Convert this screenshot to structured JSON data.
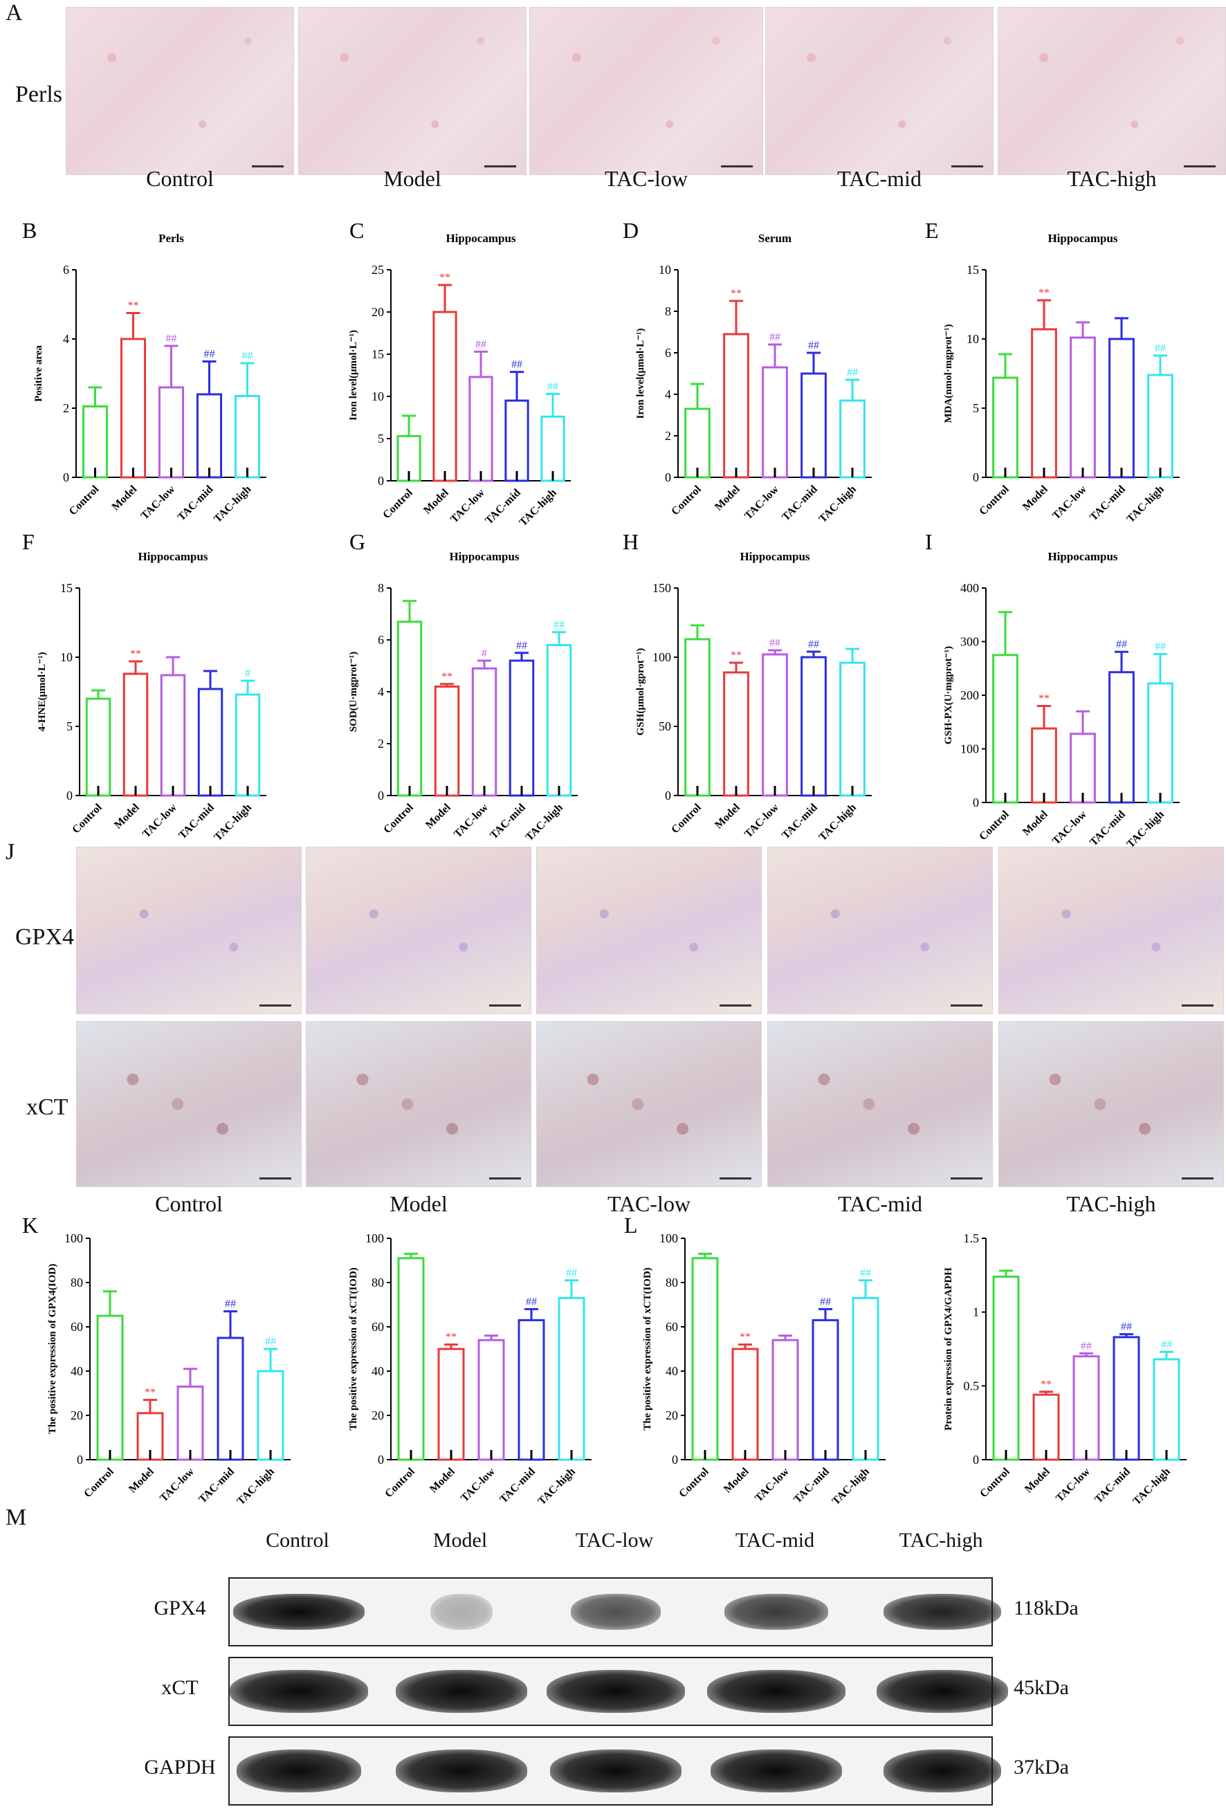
{
  "panels": {
    "A": {
      "letter": "A",
      "row_label": "Perls",
      "groups": [
        "Control",
        "Model",
        "TAC-low",
        "TAC-mid",
        "TAC-high"
      ]
    },
    "J": {
      "letter": "J",
      "row_labels": [
        "GPX4",
        "xCT"
      ],
      "groups": [
        "Control",
        "Model",
        "TAC-low",
        "TAC-mid",
        "TAC-high"
      ]
    },
    "M": {
      "letter": "M",
      "groups": [
        "Control",
        "Model",
        "TAC-low",
        "TAC-mid",
        "TAC-high"
      ],
      "rows": [
        {
          "name": "GPX4",
          "size": "118kDa"
        },
        {
          "name": "xCT",
          "size": "45kDa"
        },
        {
          "name": "GAPDH",
          "size": "37kDa"
        }
      ]
    }
  },
  "colors": {
    "Control": "#3cdc3c",
    "Model": "#e83a3a",
    "TAC-low": "#b75ce0",
    "TAC-mid": "#2a2ee0",
    "TAC-high": "#33e5ee"
  },
  "chart_data": [
    {
      "id": "B",
      "letter": "B",
      "type": "bar",
      "title": "Perls",
      "ylabel": "Positive area",
      "ylim": [
        0,
        6
      ],
      "yticks": [
        0,
        2,
        4,
        6
      ],
      "categories": [
        "Control",
        "Model",
        "TAC-low",
        "TAC-mid",
        "TAC-high"
      ],
      "values": [
        2.05,
        4.0,
        2.6,
        2.4,
        2.35
      ],
      "errors": [
        0.55,
        0.75,
        1.2,
        0.95,
        0.95
      ],
      "annotations": [
        "",
        "**",
        "##",
        "##",
        "##"
      ]
    },
    {
      "id": "C",
      "letter": "C",
      "type": "bar",
      "title": "Hippocampus",
      "ylabel": "Iron level(μmol·L⁻¹)",
      "ylim": [
        0,
        25
      ],
      "yticks": [
        0,
        5,
        10,
        15,
        20,
        25
      ],
      "categories": [
        "Control",
        "Model",
        "TAC-low",
        "TAC-mid",
        "TAC-high"
      ],
      "values": [
        5.3,
        20.0,
        12.3,
        9.5,
        7.6
      ],
      "errors": [
        2.4,
        3.2,
        3.0,
        3.4,
        2.7
      ],
      "annotations": [
        "",
        "**",
        "##",
        "##",
        "##"
      ]
    },
    {
      "id": "D",
      "letter": "D",
      "type": "bar",
      "title": "Serum",
      "ylabel": "Iron level(μmol·L⁻¹)",
      "ylim": [
        0,
        10
      ],
      "yticks": [
        0,
        2,
        4,
        6,
        8,
        10
      ],
      "categories": [
        "Control",
        "Model",
        "TAC-low",
        "TAC-mid",
        "TAC-high"
      ],
      "values": [
        3.3,
        6.9,
        5.3,
        5.0,
        3.7
      ],
      "errors": [
        1.2,
        1.6,
        1.1,
        1.0,
        1.0
      ],
      "annotations": [
        "",
        "**",
        "##",
        "##",
        "##"
      ]
    },
    {
      "id": "E",
      "letter": "E",
      "type": "bar",
      "title": "Hippocampus",
      "ylabel": "MDA(nmol·mgprot⁻¹)",
      "ylim": [
        0,
        15
      ],
      "yticks": [
        0,
        5,
        10,
        15
      ],
      "categories": [
        "Control",
        "Model",
        "TAC-low",
        "TAC-mid",
        "TAC-high"
      ],
      "values": [
        7.2,
        10.7,
        10.1,
        10.0,
        7.4
      ],
      "errors": [
        1.7,
        2.1,
        1.1,
        1.5,
        1.4
      ],
      "annotations": [
        "",
        "**",
        "",
        "",
        "##"
      ]
    },
    {
      "id": "F",
      "letter": "F",
      "type": "bar",
      "title": "Hippocampus",
      "ylabel": "4-HNE(μmol·L⁻¹)",
      "ylim": [
        0,
        15
      ],
      "yticks": [
        0,
        5,
        10,
        15
      ],
      "categories": [
        "Control",
        "Model",
        "TAC-low",
        "TAC-mid",
        "TAC-high"
      ],
      "values": [
        7.0,
        8.8,
        8.7,
        7.7,
        7.3
      ],
      "errors": [
        0.6,
        0.9,
        1.3,
        1.3,
        1.0
      ],
      "annotations": [
        "",
        "**",
        "",
        "",
        "#"
      ]
    },
    {
      "id": "G",
      "letter": "G",
      "type": "bar",
      "title": "Hippocampus",
      "ylabel": "SOD(U·mgprot⁻¹)",
      "ylim": [
        0,
        8
      ],
      "yticks": [
        0,
        2,
        4,
        6,
        8
      ],
      "categories": [
        "Control",
        "Model",
        "TAC-low",
        "TAC-mid",
        "TAC-high"
      ],
      "values": [
        6.7,
        4.2,
        4.9,
        5.2,
        5.8
      ],
      "errors": [
        0.8,
        0.1,
        0.3,
        0.3,
        0.5
      ],
      "annotations": [
        "",
        "**",
        "#",
        "##",
        "##"
      ]
    },
    {
      "id": "H",
      "letter": "H",
      "type": "bar",
      "title": "Hippocampus",
      "ylabel": "GSH(μmol·gprot⁻¹)",
      "ylim": [
        0,
        150
      ],
      "yticks": [
        0,
        50,
        100,
        150
      ],
      "categories": [
        "Control",
        "Model",
        "TAC-low",
        "TAC-mid",
        "TAC-high"
      ],
      "values": [
        113,
        89,
        102,
        100,
        96
      ],
      "errors": [
        10,
        7,
        3,
        4,
        10
      ],
      "annotations": [
        "",
        "**",
        "##",
        "##",
        ""
      ]
    },
    {
      "id": "I",
      "letter": "I",
      "type": "bar",
      "title": "Hippocampus",
      "ylabel": "GSH-PX(U·mgprot⁻¹)",
      "ylim": [
        0,
        400
      ],
      "yticks": [
        0,
        100,
        200,
        300,
        400
      ],
      "categories": [
        "Control",
        "Model",
        "TAC-low",
        "TAC-mid",
        "TAC-high"
      ],
      "values": [
        275,
        138,
        128,
        243,
        222
      ],
      "errors": [
        80,
        42,
        42,
        38,
        55
      ],
      "annotations": [
        "",
        "**",
        "",
        "##",
        "##"
      ]
    },
    {
      "id": "K",
      "letter": "K",
      "type": "bar",
      "title": "",
      "ylabel": "The positive expression of GPX4(IOD)",
      "ylim": [
        0,
        100
      ],
      "yticks": [
        0,
        20,
        40,
        60,
        80,
        100
      ],
      "categories": [
        "Control",
        "Model",
        "TAC-low",
        "TAC-mid",
        "TAC-high"
      ],
      "values": [
        65,
        21,
        33,
        55,
        40
      ],
      "errors": [
        11,
        6,
        8,
        12,
        10
      ],
      "annotations": [
        "",
        "**",
        "",
        "##",
        "##"
      ]
    },
    {
      "id": "K2",
      "letter": "",
      "type": "bar",
      "title": "",
      "ylabel": "The positive expression of xCT(IOD)",
      "ylim": [
        0,
        100
      ],
      "yticks": [
        0,
        20,
        40,
        60,
        80,
        100
      ],
      "categories": [
        "Control",
        "Model",
        "TAC-low",
        "TAC-mid",
        "TAC-high"
      ],
      "values": [
        91,
        50,
        54,
        63,
        73
      ],
      "errors": [
        2,
        2,
        2,
        5,
        8
      ],
      "annotations": [
        "",
        "**",
        "",
        "##",
        "##"
      ]
    },
    {
      "id": "L",
      "letter": "L",
      "type": "bar",
      "title": "",
      "ylabel": "The positive expression of xCT(IOD)",
      "ylim": [
        0,
        100
      ],
      "yticks": [
        0,
        20,
        40,
        60,
        80,
        100
      ],
      "categories": [
        "Control",
        "Model",
        "TAC-low",
        "TAC-mid",
        "TAC-high"
      ],
      "values": [
        91,
        50,
        54,
        63,
        73
      ],
      "errors": [
        2,
        2,
        2,
        5,
        8
      ],
      "annotations": [
        "",
        "**",
        "",
        "##",
        "##"
      ]
    },
    {
      "id": "L2",
      "letter": "",
      "type": "bar",
      "title": "",
      "ylabel": "Protein expression of GPX4/GAPDH",
      "ylim": [
        0,
        1.5
      ],
      "yticks": [
        0.0,
        0.5,
        1.0,
        1.5
      ],
      "categories": [
        "Control",
        "Model",
        "TAC-low",
        "TAC-mid",
        "TAC-high"
      ],
      "values": [
        1.24,
        0.44,
        0.7,
        0.83,
        0.68
      ],
      "errors": [
        0.04,
        0.02,
        0.02,
        0.02,
        0.05
      ],
      "annotations": [
        "",
        "**",
        "##",
        "##",
        "##"
      ]
    }
  ]
}
